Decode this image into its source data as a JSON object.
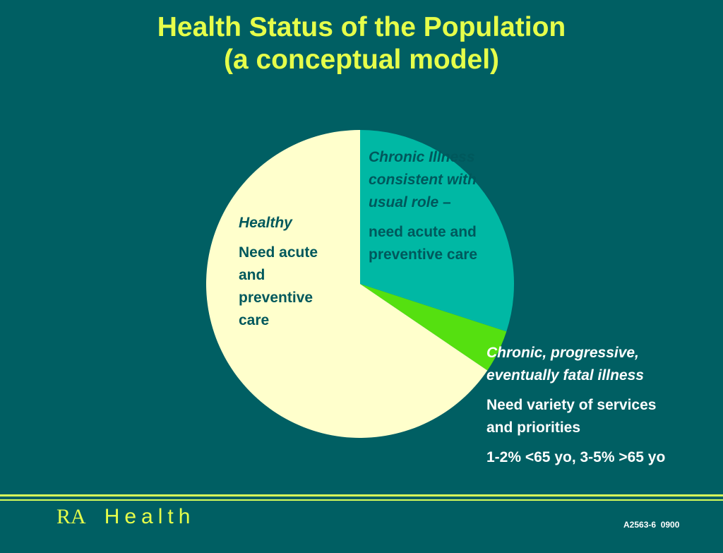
{
  "title_line1": "Health Status of the Population",
  "title_line2": "(a conceptual model)",
  "chart_data": {
    "type": "pie",
    "title": "Health Status of the Population (a conceptual model)",
    "slices": [
      {
        "key": "chronic-consistent",
        "value": 30,
        "color": "#00b8a4",
        "label_line1": "Chronic Illness",
        "label_line2": "consistent with",
        "label_line3": "usual role",
        "label_dash": " –",
        "desc_line1": "need acute and",
        "desc_line2": "preventive care"
      },
      {
        "key": "chronic-progressive",
        "value": 4.5,
        "color": "#55e010",
        "label_line1": "Chronic, progressive,",
        "label_line2": "eventually fatal illness",
        "desc_line1": "Need variety of services",
        "desc_line2": "and priorities",
        "desc_line3": "1-2% <65 yo, 3-5% >65 yo"
      },
      {
        "key": "healthy",
        "value": 65.5,
        "color": "#ffffcc",
        "label_line1": "Healthy",
        "desc_line1": "Need acute",
        "desc_line2": "and",
        "desc_line3": "preventive",
        "desc_line4": "care"
      }
    ]
  },
  "footer": {
    "brand_ra": "RA",
    "brand_health": "Health",
    "code": "A2563-6  0900"
  }
}
